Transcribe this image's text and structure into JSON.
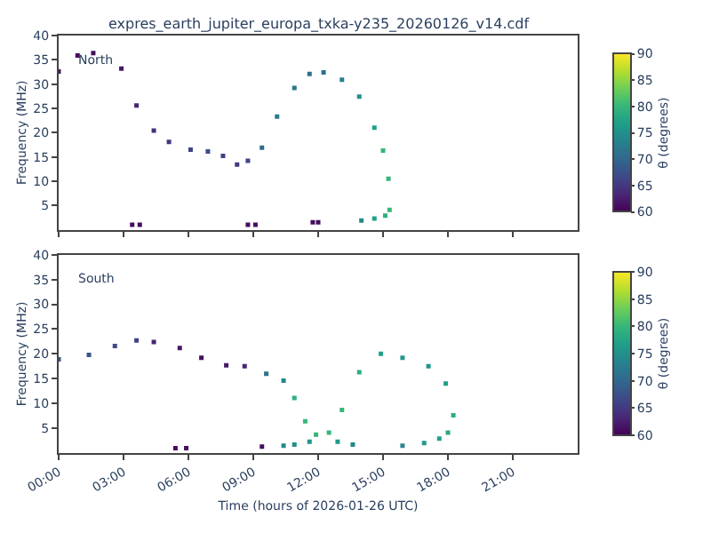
{
  "chart_data": [
    {
      "type": "scatter",
      "title": "expres_earth_jupiter_europa_txka-y235_20260126_v14.cdf",
      "ylabel": "Frequency (MHz)",
      "clabel": "θ (degrees)",
      "annotations": [
        "North"
      ],
      "x": [
        0,
        0.875,
        1.6,
        2.9,
        3.6,
        4.4,
        5.1,
        6.1,
        6.9,
        7.6,
        8.25,
        8.75,
        9.4,
        10.1,
        10.9,
        11.6,
        12.25,
        13.1,
        13.9,
        14.6,
        15.0,
        15.25,
        15.3,
        15.1,
        14.6,
        14.0,
        3.4,
        3.75,
        8.75,
        9.1,
        11.75,
        12.0
      ],
      "values": [
        32.6,
        35.9,
        36.4,
        33.2,
        25.6,
        20.4,
        18.1,
        16.5,
        16.1,
        15.2,
        13.4,
        14.2,
        16.9,
        23.3,
        29.2,
        32.1,
        32.4,
        30.9,
        27.4,
        21.0,
        16.3,
        10.5,
        4.1,
        2.9,
        2.3,
        1.9,
        1.0,
        1.0,
        1.0,
        1.0,
        1.5,
        1.5
      ],
      "cvalues": [
        62,
        61,
        61,
        62,
        63,
        64,
        65,
        66,
        67,
        66,
        65,
        66,
        70,
        72,
        72,
        71,
        71,
        73,
        75,
        77,
        80,
        80,
        80,
        79,
        77,
        74,
        61,
        61,
        61,
        61,
        61,
        61
      ],
      "xlim": [
        0,
        24
      ],
      "xticks": [
        {
          "value": 0,
          "label": null
        },
        {
          "value": 3,
          "label": null
        },
        {
          "value": 6,
          "label": null
        },
        {
          "value": 9,
          "label": null
        },
        {
          "value": 12,
          "label": null
        },
        {
          "value": 15,
          "label": null
        },
        {
          "value": 18,
          "label": null
        },
        {
          "value": 21,
          "label": null
        }
      ],
      "ylim": [
        0,
        40
      ],
      "yticks": [
        5,
        10,
        15,
        20,
        25,
        30,
        35,
        40
      ],
      "clim": [
        60,
        90
      ],
      "cticks": [
        60,
        65,
        70,
        75,
        80,
        85,
        90
      ],
      "marker": "square",
      "grid": false,
      "tick_labels": "y"
    },
    {
      "type": "scatter",
      "xlabel": "Time (hours of 2026-01-26 UTC)",
      "ylabel": "Frequency (MHz)",
      "clabel": "θ (degrees)",
      "annotations": [
        "South"
      ],
      "x": [
        0,
        1.4,
        2.6,
        3.6,
        4.4,
        5.6,
        6.6,
        7.75,
        8.6,
        9.6,
        10.4,
        10.9,
        11.4,
        11.9,
        12.5,
        13.1,
        13.9,
        14.9,
        15.9,
        17.1,
        17.9,
        18.25,
        18.0,
        17.6,
        16.9,
        15.9,
        13.6,
        12.9,
        11.6,
        10.9,
        10.4,
        5.4,
        5.9,
        9.4
      ],
      "values": [
        18.9,
        19.8,
        21.6,
        22.7,
        22.4,
        21.2,
        19.2,
        17.7,
        17.5,
        16.0,
        14.6,
        11.1,
        6.4,
        3.7,
        4.1,
        8.7,
        16.3,
        20.0,
        19.2,
        17.5,
        14.0,
        7.6,
        4.1,
        2.9,
        2.0,
        1.5,
        1.7,
        2.3,
        2.3,
        1.7,
        1.5,
        1.0,
        1.0,
        1.3
      ],
      "cvalues": [
        68,
        68,
        67,
        66,
        63,
        62,
        61,
        62,
        63,
        71,
        74,
        79,
        80,
        80,
        80,
        80,
        79,
        77,
        76,
        76,
        77,
        79,
        78,
        77,
        76,
        74,
        74,
        76,
        76,
        75,
        74,
        61,
        61,
        61
      ],
      "xlim": [
        0,
        24
      ],
      "xticks": [
        {
          "value": 0,
          "label": "00:00"
        },
        {
          "value": 3,
          "label": "03:00"
        },
        {
          "value": 6,
          "label": "06:00"
        },
        {
          "value": 9,
          "label": "09:00"
        },
        {
          "value": 12,
          "label": "12:00"
        },
        {
          "value": 15,
          "label": "15:00"
        },
        {
          "value": 18,
          "label": "18:00"
        },
        {
          "value": 21,
          "label": "21:00"
        }
      ],
      "ylim": [
        0,
        40
      ],
      "yticks": [
        5,
        10,
        15,
        20,
        25,
        30,
        35,
        40
      ],
      "clim": [
        60,
        90
      ],
      "cticks": [
        60,
        65,
        70,
        75,
        80,
        85,
        90
      ],
      "marker": "square",
      "grid": false
    }
  ]
}
